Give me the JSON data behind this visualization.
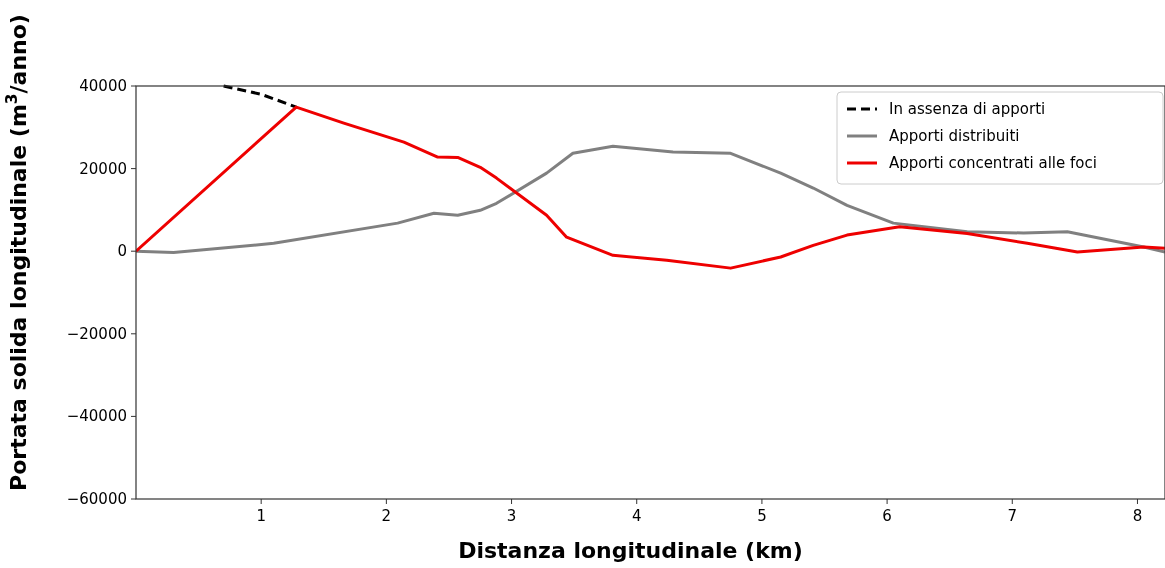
{
  "chart_data": {
    "type": "line",
    "xlabel": "Distanza longitudinale (km)",
    "ylabel": "Portata solida longitudinale (m$^{3}$/anno)",
    "xlim": [
      0,
      8.22
    ],
    "xticks": [
      1,
      2,
      3,
      4,
      5,
      6,
      7,
      8
    ],
    "ylim": [
      -60000,
      40000
    ],
    "yticks": [
      -60000,
      -40000,
      -20000,
      0,
      20000,
      40000
    ],
    "grid": false,
    "legend": "top right",
    "marker": "none",
    "series": [
      {
        "name": "In assenza di apporti",
        "color": "#000000",
        "line_style": "dashed",
        "x": [
          0.7,
          1.0,
          1.28
        ],
        "values": [
          40000,
          38000,
          34900
        ]
      },
      {
        "name": "Apporti distribuiti",
        "color": "#808080",
        "line_style": "solid",
        "x": [
          0,
          0.3,
          1.1,
          2.09,
          2.38,
          2.57,
          2.75,
          2.88,
          3.28,
          3.49,
          3.81,
          4.29,
          4.75,
          5.15,
          5.41,
          5.68,
          6.05,
          6.64,
          7.09,
          7.44,
          8.05,
          8.22
        ],
        "values": [
          0,
          -300,
          1900,
          6800,
          9200,
          8700,
          9900,
          11600,
          18900,
          23700,
          25400,
          24000,
          23700,
          18900,
          15300,
          11100,
          6800,
          4700,
          4400,
          4700,
          1000,
          -200
        ]
      },
      {
        "name": "Apporti concentrati alle foci",
        "color": "#ee0000",
        "line_style": "solid",
        "x": [
          0,
          1.28,
          1.66,
          2.14,
          2.41,
          2.57,
          2.75,
          2.88,
          3.28,
          3.44,
          3.81,
          4.24,
          4.75,
          5.15,
          5.41,
          5.68,
          6.1,
          6.64,
          7.12,
          7.52,
          8.05,
          8.22
        ],
        "values": [
          0,
          34900,
          31000,
          26400,
          22800,
          22700,
          20300,
          17700,
          8700,
          3400,
          -1000,
          -2200,
          -4100,
          -1400,
          1400,
          3900,
          5900,
          4300,
          1900,
          -200,
          1000,
          700
        ]
      }
    ]
  }
}
